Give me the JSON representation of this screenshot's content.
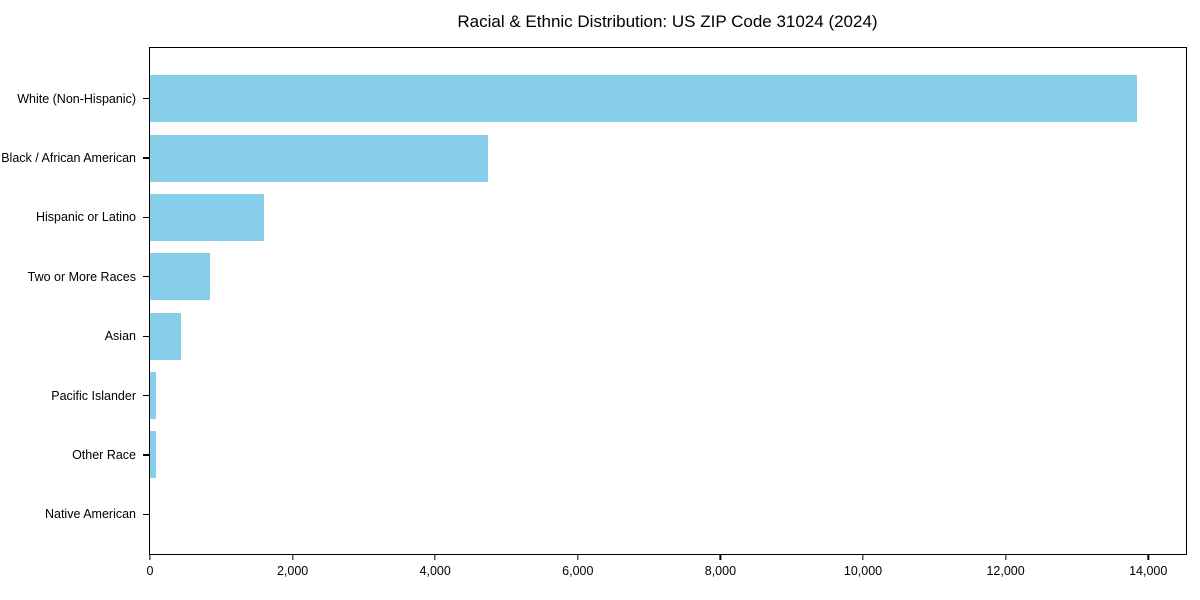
{
  "chart_data": {
    "type": "bar",
    "orientation": "horizontal",
    "title": "Racial & Ethnic Distribution: US ZIP Code 31024 (2024)",
    "categories": [
      "White (Non-Hispanic)",
      "Black / African American",
      "Hispanic or Latino",
      "Two or More Races",
      "Asian",
      "Pacific Islander",
      "Other Race",
      "Native American"
    ],
    "values": [
      13845,
      4735,
      1600,
      840,
      435,
      85,
      90,
      0
    ],
    "xlabel": "",
    "ylabel": "",
    "xlim": [
      0,
      14530
    ],
    "x_ticks": [
      0,
      2000,
      4000,
      6000,
      8000,
      10000,
      12000,
      14000
    ],
    "x_tick_labels": [
      "0",
      "2,000",
      "4,000",
      "6,000",
      "8,000",
      "10,000",
      "12,000",
      "14,000"
    ],
    "grid": false,
    "legend": null,
    "bar_color": "#87CEEB",
    "axis_color": "#000000",
    "background_color": "#FFFFFF"
  }
}
